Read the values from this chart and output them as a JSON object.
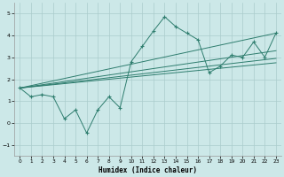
{
  "background_color": "#cce8e8",
  "grid_color": "#aacccc",
  "line_color": "#2e7d6e",
  "marker": "+",
  "xlabel": "Humidex (Indice chaleur)",
  "xlim": [
    -0.5,
    23.5
  ],
  "ylim": [
    -1.5,
    5.5
  ],
  "yticks": [
    -1,
    0,
    1,
    2,
    3,
    4,
    5
  ],
  "xticks": [
    0,
    1,
    2,
    3,
    4,
    5,
    6,
    7,
    8,
    9,
    10,
    11,
    12,
    13,
    14,
    15,
    16,
    17,
    18,
    19,
    20,
    21,
    22,
    23
  ],
  "wiggly": [
    1.6,
    1.2,
    1.3,
    1.2,
    0.2,
    0.6,
    -0.45,
    0.6,
    1.2,
    0.7,
    2.8,
    3.5,
    4.2,
    4.85,
    4.4,
    4.1,
    3.8,
    2.3,
    2.6,
    3.1,
    3.0,
    3.7,
    3.0,
    4.1
  ],
  "straight_lines": [
    {
      "x0": 0,
      "y0": 1.6,
      "x1": 23,
      "y1": 3.3
    },
    {
      "x0": 0,
      "y0": 1.6,
      "x1": 23,
      "y1": 2.95
    },
    {
      "x0": 0,
      "y0": 1.6,
      "x1": 23,
      "y1": 2.75
    },
    {
      "x0": 0,
      "y0": 1.6,
      "x1": 23,
      "y1": 4.1
    }
  ]
}
